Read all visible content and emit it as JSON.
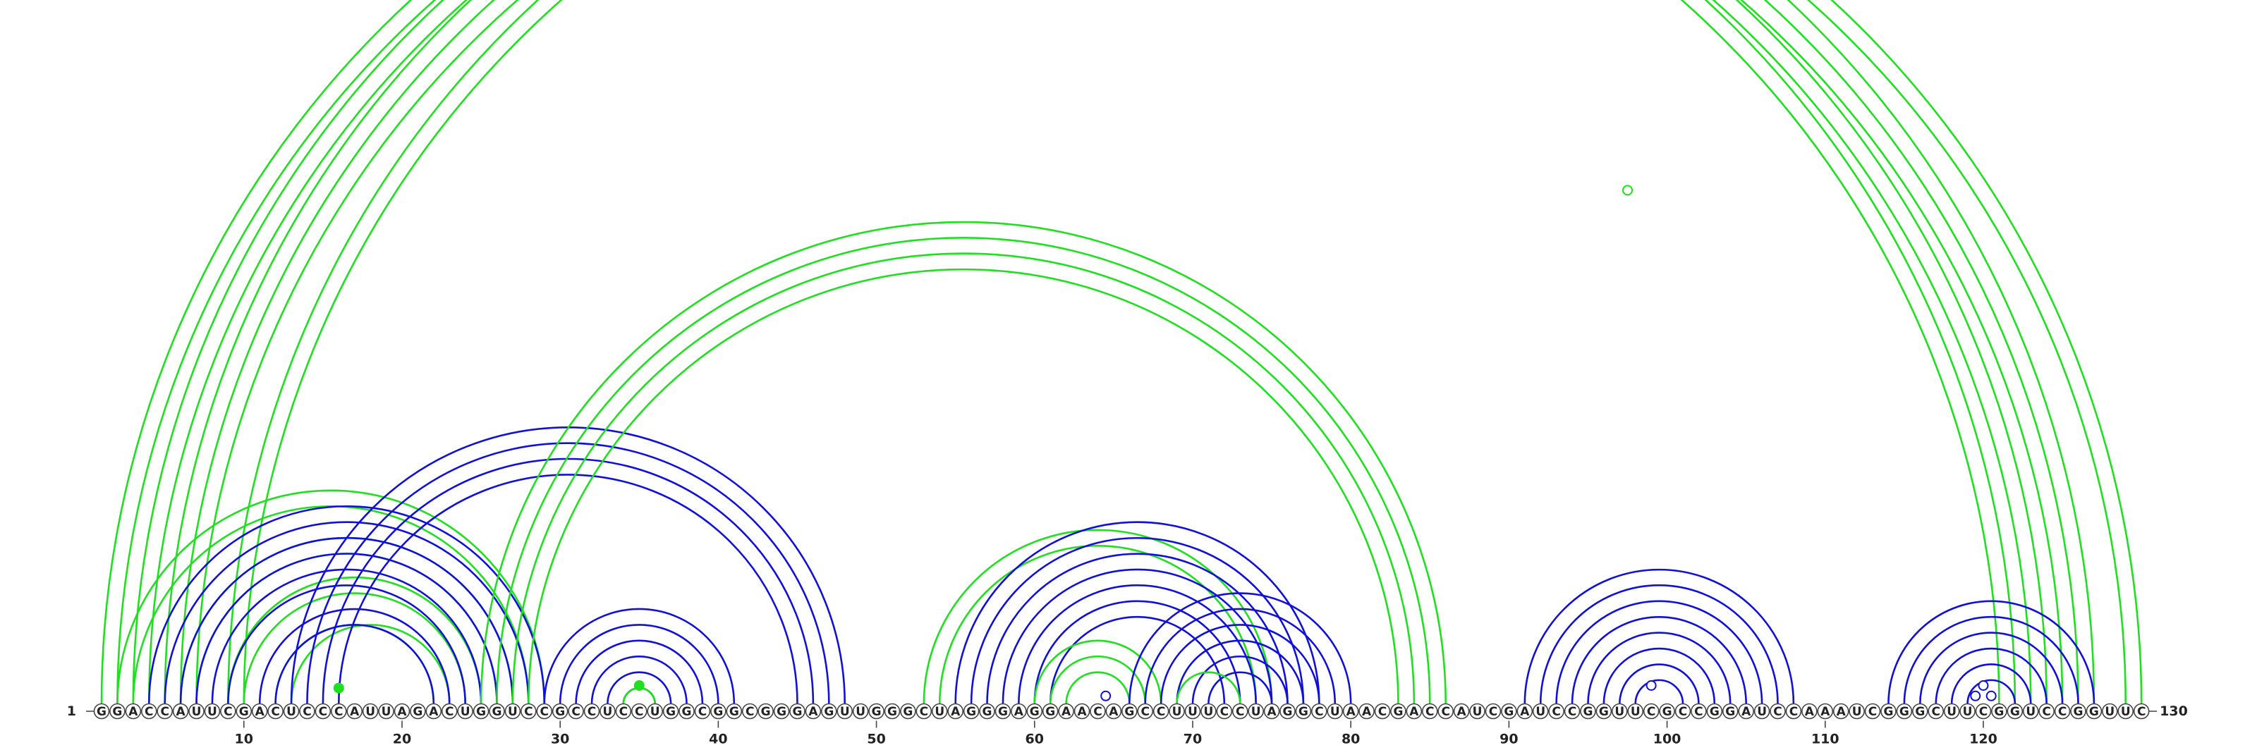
{
  "sequence": "GGACCAUUCGACUCCCAUUAGACUGGUCCGCCUCCUGGCGGCGGGAGUUGGGCUAGGGAGGAACAGCCUUUCCUAGGCUAACGACCAUCGAUCCGGUUCGCCGGAUCCAAAUCGGGCUUCGGUCCGGUUC",
  "start_label": "1",
  "end_label": "130",
  "position_ticks": [
    "10",
    "20",
    "30",
    "40",
    "50",
    "60",
    "70",
    "80",
    "90",
    "100",
    "110",
    "120"
  ],
  "colors": {
    "green": "#1ee01e",
    "blue": "#1010d8"
  },
  "arc_groups": [
    {
      "color": "green",
      "pairs": [
        [
          1,
          122
        ],
        [
          2,
          121
        ],
        [
          3,
          124
        ],
        [
          4,
          123
        ],
        [
          5,
          127
        ],
        [
          6,
          126
        ],
        [
          7,
          125
        ]
      ]
    },
    {
      "color": "green",
      "pairs": [
        [
          9,
          130
        ],
        [
          10,
          129
        ]
      ]
    },
    {
      "color": "green",
      "pairs": [
        [
          2,
          29
        ],
        [
          3,
          28
        ],
        [
          6,
          27
        ],
        [
          7,
          26
        ],
        [
          9,
          25
        ],
        [
          10,
          24
        ]
      ]
    },
    {
      "color": "green",
      "pairs": [
        [
          12,
          22
        ],
        [
          13,
          23
        ]
      ]
    },
    {
      "color": "blue",
      "pairs": [
        [
          4,
          29
        ],
        [
          5,
          28
        ],
        [
          6,
          27
        ],
        [
          7,
          26
        ],
        [
          8,
          25
        ],
        [
          9,
          24
        ],
        [
          11,
          23
        ],
        [
          12,
          22
        ]
      ]
    },
    {
      "color": "blue",
      "pairs": [
        [
          13,
          48
        ],
        [
          14,
          47
        ],
        [
          15,
          46
        ],
        [
          16,
          45
        ]
      ]
    },
    {
      "color": "green",
      "pairs": [
        [
          25,
          86
        ],
        [
          26,
          85
        ],
        [
          27,
          84
        ],
        [
          28,
          83
        ]
      ]
    },
    {
      "color": "blue",
      "pairs": [
        [
          29,
          41
        ],
        [
          30,
          40
        ],
        [
          31,
          39
        ],
        [
          32,
          38
        ],
        [
          33,
          37
        ],
        [
          34,
          36
        ]
      ]
    },
    {
      "color": "green",
      "pairs": [
        [
          34,
          36
        ]
      ]
    },
    {
      "color": "green",
      "pairs": [
        [
          53,
          75
        ],
        [
          54,
          74
        ]
      ]
    },
    {
      "color": "blue",
      "pairs": [
        [
          55,
          78
        ],
        [
          56,
          77
        ],
        [
          57,
          76
        ],
        [
          58,
          75
        ],
        [
          59,
          74
        ],
        [
          60,
          73
        ],
        [
          61,
          72
        ]
      ]
    },
    {
      "color": "green",
      "pairs": [
        [
          60,
          68
        ],
        [
          61,
          67
        ],
        [
          62,
          66
        ]
      ]
    },
    {
      "color": "blue",
      "pairs": [
        [
          66,
          80
        ],
        [
          67,
          79
        ],
        [
          68,
          78
        ],
        [
          69,
          77
        ],
        [
          70,
          76
        ],
        [
          71,
          75
        ]
      ]
    },
    {
      "color": "green",
      "pairs": [
        [
          69,
          73
        ]
      ]
    },
    {
      "color": "blue",
      "pairs": [
        [
          91,
          108
        ],
        [
          92,
          107
        ],
        [
          93,
          106
        ],
        [
          94,
          105
        ],
        [
          95,
          104
        ],
        [
          96,
          103
        ],
        [
          97,
          102
        ],
        [
          98,
          101
        ]
      ]
    },
    {
      "color": "blue",
      "pairs": [
        [
          114,
          127
        ],
        [
          115,
          126
        ],
        [
          116,
          125
        ],
        [
          117,
          124
        ],
        [
          118,
          123
        ],
        [
          119,
          122
        ]
      ]
    }
  ],
  "markers": [
    {
      "at": 65,
      "pairs_with": 130,
      "color": "green",
      "filled": false
    },
    {
      "at": 15,
      "pairs_with": 17,
      "color": "green",
      "filled": true
    },
    {
      "at": 35,
      "pairs_with": 35,
      "color": "green",
      "filled": true
    },
    {
      "at": 64,
      "pairs_with": 65,
      "color": "blue",
      "filled": false
    },
    {
      "at": 99,
      "pairs_with": 99,
      "color": "blue",
      "filled": false
    },
    {
      "at": 120,
      "pairs_with": 121,
      "color": "blue",
      "filled": false
    },
    {
      "at": 120,
      "pairs_with": 120,
      "color": "blue",
      "filled": false
    },
    {
      "at": 120,
      "pairs_with": 119,
      "color": "blue",
      "filled": false
    }
  ]
}
